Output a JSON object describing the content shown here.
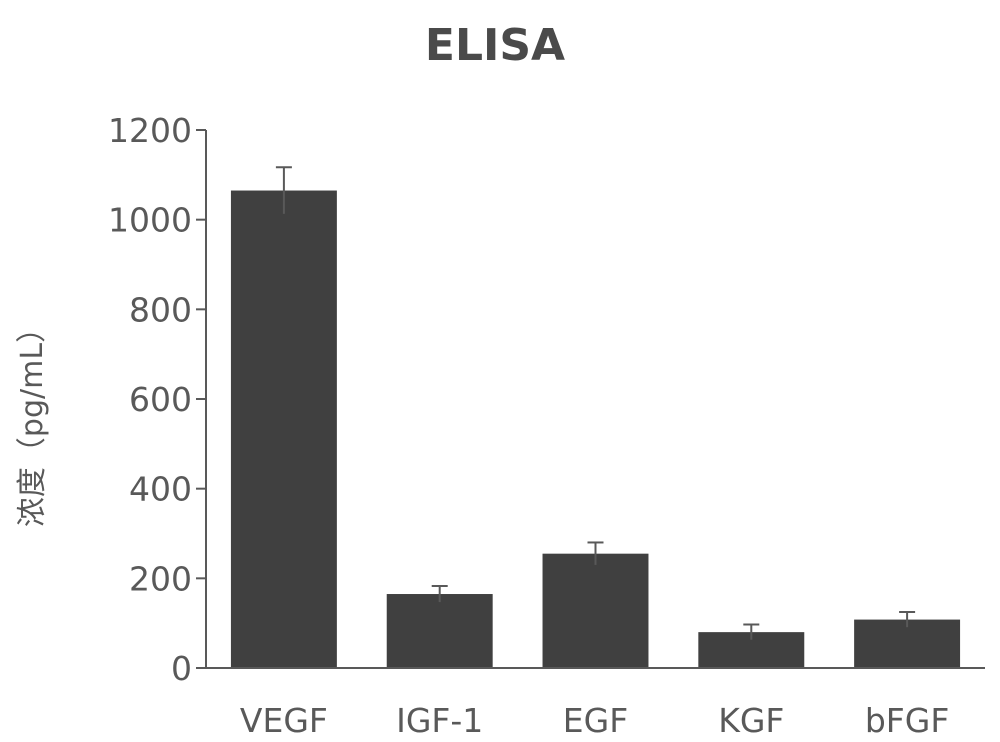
{
  "chart_data": {
    "type": "bar",
    "title": "ELISA",
    "ylabel": "浓度（pg/mL）",
    "xlabel": "",
    "categories": [
      "VEGF",
      "IGF-1",
      "EGF",
      "KGF",
      "bFGF"
    ],
    "values": [
      1065,
      165,
      255,
      80,
      108
    ],
    "errors": [
      52,
      18,
      25,
      17,
      17
    ],
    "ylim": [
      0,
      1200
    ],
    "yticks": [
      0,
      200,
      400,
      600,
      800,
      1000,
      1200
    ],
    "grid": false,
    "bar_color": "#404040",
    "axis_color": "#595959"
  }
}
